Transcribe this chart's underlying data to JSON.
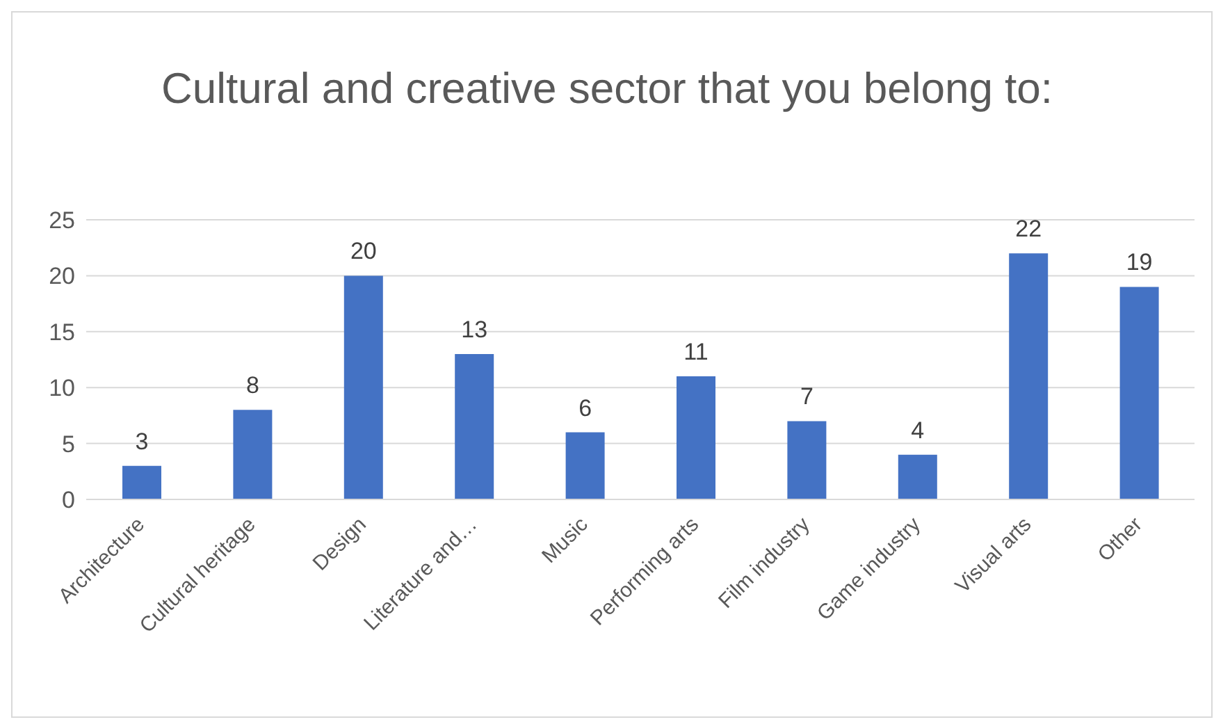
{
  "chart_data": {
    "type": "bar",
    "title": "Cultural and creative sector that you belong to:",
    "categories": [
      "Architecture",
      "Cultural heritage",
      "Design",
      "Literature and…",
      "Music",
      "Performing arts",
      "Film industry",
      "Game industry",
      "Visual arts",
      "Other"
    ],
    "values": [
      3,
      8,
      20,
      13,
      6,
      11,
      7,
      4,
      22,
      19
    ],
    "color": "#4472c4",
    "ylim": [
      0,
      25
    ],
    "yticks": [
      0,
      5,
      10,
      15,
      20,
      25
    ],
    "grid": "y",
    "data_labels": true
  }
}
